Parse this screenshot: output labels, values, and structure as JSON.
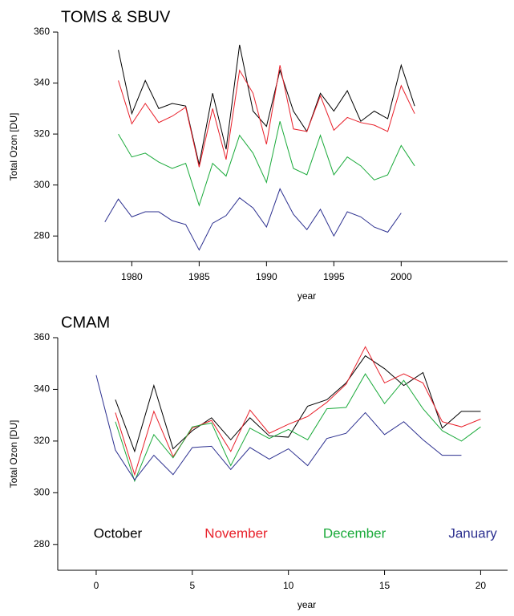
{
  "chart_data": [
    {
      "type": "line",
      "title": "TOMS & SBUV",
      "x_label": "year",
      "y_label": "Total Ozon [DU]",
      "x": [
        1978,
        1979,
        1980,
        1981,
        1982,
        1983,
        1984,
        1985,
        1986,
        1987,
        1988,
        1989,
        1990,
        1991,
        1992,
        1993,
        1994,
        1995,
        1996,
        1997,
        1998,
        1999,
        2000,
        2001
      ],
      "xlim": [
        1974.5,
        2007.9
      ],
      "xticks": [
        1980,
        1985,
        1990,
        1995,
        2000
      ],
      "ylim": [
        270,
        360
      ],
      "yticks": [
        280,
        300,
        320,
        340,
        360
      ],
      "series": [
        {
          "color": "#000000",
          "values": [
            null,
            353,
            328,
            341,
            330,
            332,
            331,
            308,
            336,
            314,
            355,
            329,
            323,
            345,
            329,
            321,
            336,
            329,
            337,
            325,
            329,
            326,
            347,
            331
          ]
        },
        {
          "color": "#e8202a",
          "values": [
            null,
            341,
            324,
            332,
            324.5,
            327,
            330.5,
            307,
            330,
            310,
            345,
            336,
            316,
            347,
            322,
            321,
            335,
            321.5,
            326.5,
            324.5,
            323.5,
            321,
            339,
            328
          ]
        },
        {
          "color": "#1aaa3a",
          "values": [
            null,
            320,
            311,
            312.5,
            309,
            306.5,
            308.5,
            292,
            308.5,
            303.5,
            319.5,
            312.5,
            301,
            325,
            306.5,
            304,
            319.5,
            304,
            311,
            307.5,
            302,
            304,
            315.5,
            307.5
          ]
        },
        {
          "color": "#2b2f8f",
          "values": [
            285.5,
            294.5,
            287.5,
            289.5,
            289.5,
            286,
            284.5,
            274.5,
            285,
            288,
            295,
            291,
            283.5,
            298.5,
            288.5,
            282.5,
            290.5,
            280,
            289.5,
            287.5,
            283.5,
            281.5,
            289,
            null
          ]
        }
      ]
    },
    {
      "type": "line",
      "title": "CMAM",
      "x_label": "year",
      "y_label": "Total Ozon [DU]",
      "x": [
        0,
        1,
        2,
        3,
        4,
        5,
        6,
        7,
        8,
        9,
        10,
        11,
        12,
        13,
        14,
        15,
        16,
        17,
        18,
        19,
        20
      ],
      "xlim": [
        -2,
        21.4
      ],
      "xticks": [
        0,
        5,
        10,
        15,
        20
      ],
      "ylim": [
        270,
        360
      ],
      "yticks": [
        280,
        300,
        320,
        340,
        360
      ],
      "series": [
        {
          "name": "October",
          "color": "#000000",
          "values": [
            null,
            336,
            316,
            341.5,
            317,
            324,
            329,
            320.5,
            329,
            322,
            321.5,
            333.5,
            336,
            342.5,
            353,
            348,
            341.5,
            346.5,
            325,
            331.5,
            331.5
          ]
        },
        {
          "name": "November",
          "color": "#e8202a",
          "values": [
            null,
            331,
            307,
            331.5,
            314,
            325,
            328,
            316,
            332,
            323,
            326.5,
            329.5,
            335,
            342,
            356.5,
            342.5,
            346,
            342.5,
            327.5,
            325.5,
            328.5
          ]
        },
        {
          "name": "December",
          "color": "#1aaa3a",
          "values": [
            null,
            327.5,
            304.5,
            322.5,
            313.5,
            325.5,
            327,
            310.5,
            325,
            321,
            324.5,
            320.5,
            332.5,
            333,
            346,
            334.5,
            343.5,
            332.5,
            324,
            320,
            325.5
          ]
        },
        {
          "name": "January",
          "color": "#2b2f8f",
          "values": [
            345.5,
            316.5,
            305,
            314.5,
            307,
            317.5,
            318,
            309,
            317.5,
            313,
            317,
            310.5,
            321,
            323,
            331,
            322.5,
            327.5,
            320.5,
            314.5,
            314.5,
            null
          ]
        }
      ]
    }
  ]
}
